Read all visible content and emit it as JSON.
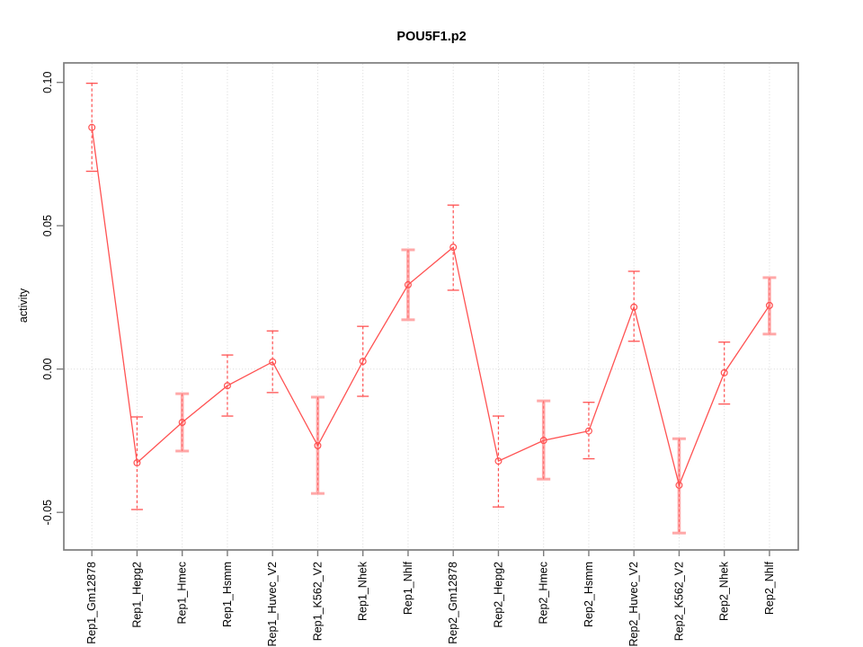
{
  "title": "POU5F1.p2",
  "chart_data": {
    "type": "line",
    "title": "POU5F1.p2",
    "xlabel": "",
    "ylabel": "activity",
    "ylim": [
      -0.062,
      0.107
    ],
    "yticks": [
      0.1,
      0.05,
      0.0,
      -0.05
    ],
    "ytick_labels": [
      "0.10",
      "0.05",
      "0.00",
      "-0.05"
    ],
    "grid": "dotted vertical gridline at each category; dotted horizontal line at y=0",
    "legend_position": "none",
    "marker": "open-circle",
    "categories": [
      "Rep1_Gm12878",
      "Rep1_Hepg2",
      "Rep1_Hmec",
      "Rep1_Hsmm",
      "Rep1_Huvec_V2",
      "Rep1_K562_V2",
      "Rep1_Nhek",
      "Rep1_Nhlf",
      "Rep2_Gm12878",
      "Rep2_Hepg2",
      "Rep2_Hmec",
      "Rep2_Hsmm",
      "Rep2_Huvec_V2",
      "Rep2_K562_V2",
      "Rep2_Nhek",
      "Rep2_Nhlf"
    ],
    "series": [
      {
        "name": "activity",
        "values": [
          0.0843,
          -0.0327,
          -0.0186,
          -0.0058,
          0.0025,
          -0.0267,
          0.0027,
          0.0294,
          0.0425,
          -0.0321,
          -0.0249,
          -0.0216,
          0.0216,
          -0.0405,
          -0.0013,
          0.0222
        ],
        "error_high": [
          0.0997,
          -0.0167,
          -0.0086,
          0.0049,
          0.0133,
          -0.0098,
          0.0149,
          0.0416,
          0.0572,
          -0.0164,
          -0.0111,
          -0.0116,
          0.0341,
          -0.0243,
          0.0094,
          0.0319
        ],
        "error_low": [
          0.069,
          -0.049,
          -0.0286,
          -0.0164,
          -0.0082,
          -0.0434,
          -0.0095,
          0.0172,
          0.0275,
          -0.0481,
          -0.0384,
          -0.0313,
          0.0097,
          -0.0572,
          -0.0122,
          0.0122
        ],
        "bar_styles": [
          "dashed",
          "dashed",
          "solid-pink",
          "dashed",
          "dashed",
          "solid-pink",
          "dashed",
          "solid-pink",
          "dashed",
          "dashed",
          "solid-pink",
          "dashed",
          "dashed",
          "solid-pink",
          "dashed",
          "solid-pink"
        ]
      }
    ]
  },
  "colors": {
    "line": "#ff5252",
    "error_pink": "#ffa8a8",
    "axis": "#7d7d7d",
    "grid": "#d8d8d8",
    "text": "#000000",
    "background": "#ffffff"
  }
}
